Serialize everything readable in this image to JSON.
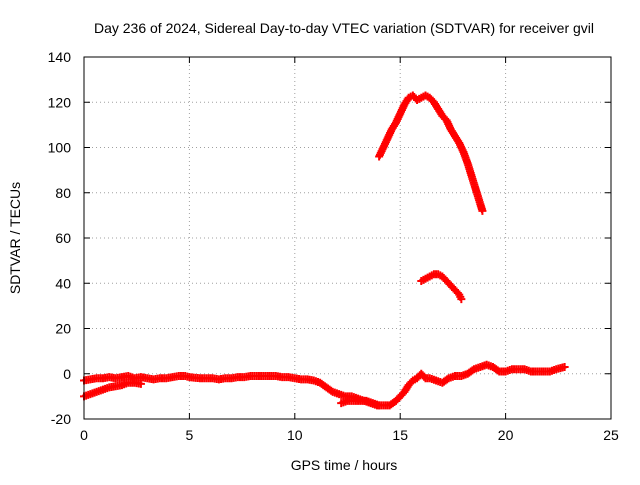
{
  "chart_data": {
    "type": "scatter",
    "title": "Day 236 of 2024, Sidereal Day-to-day VTEC variation (SDTVAR) for receiver gvil",
    "xlabel": "GPS time / hours",
    "ylabel": "SDTVAR / TECUs",
    "xlim": [
      0,
      25
    ],
    "ylim": [
      -20,
      140
    ],
    "x_ticks": [
      "0",
      "5",
      "10",
      "15",
      "20",
      "25"
    ],
    "y_ticks": [
      "-20",
      "0",
      "20",
      "40",
      "60",
      "80",
      "100",
      "120",
      "140"
    ],
    "grid": true,
    "marker": "plus",
    "series_color": "#ff0000",
    "series": [
      {
        "name": "near-zero baseline",
        "points": [
          [
            0.0,
            -3
          ],
          [
            0.3,
            -2.5
          ],
          [
            0.6,
            -2
          ],
          [
            0.9,
            -2
          ],
          [
            1.2,
            -1.5
          ],
          [
            1.5,
            -2
          ],
          [
            1.8,
            -1.5
          ],
          [
            2.1,
            -1
          ],
          [
            2.4,
            -2
          ],
          [
            2.7,
            -1.5
          ],
          [
            3.0,
            -2
          ],
          [
            3.3,
            -2.5
          ],
          [
            3.6,
            -2
          ],
          [
            3.9,
            -2
          ],
          [
            4.2,
            -1.5
          ],
          [
            4.5,
            -1
          ],
          [
            4.8,
            -1
          ],
          [
            5.0,
            -1.5
          ],
          [
            5.5,
            -2
          ],
          [
            5.8,
            -2
          ],
          [
            6.1,
            -2
          ],
          [
            6.4,
            -2.5
          ],
          [
            6.7,
            -2
          ],
          [
            7.0,
            -2
          ],
          [
            7.3,
            -1.5
          ],
          [
            7.6,
            -1.5
          ],
          [
            7.9,
            -1
          ],
          [
            8.2,
            -1
          ],
          [
            8.5,
            -1
          ],
          [
            8.8,
            -1
          ],
          [
            9.1,
            -1
          ],
          [
            9.4,
            -1.5
          ],
          [
            9.7,
            -1.5
          ],
          [
            10.0,
            -2
          ],
          [
            10.3,
            -2.5
          ],
          [
            10.6,
            -2.5
          ],
          [
            10.9,
            -3
          ],
          [
            11.2,
            -4
          ],
          [
            11.5,
            -6
          ],
          [
            11.8,
            -8
          ],
          [
            12.1,
            -9
          ],
          [
            12.4,
            -10
          ],
          [
            12.7,
            -10
          ],
          [
            13.0,
            -11
          ],
          [
            13.3,
            -12
          ],
          [
            13.6,
            -13
          ],
          [
            13.9,
            -14
          ],
          [
            14.2,
            -14
          ],
          [
            14.5,
            -14
          ],
          [
            14.8,
            -12
          ],
          [
            15.0,
            -10
          ],
          [
            15.2,
            -8
          ],
          [
            15.4,
            -5
          ],
          [
            15.6,
            -3
          ],
          [
            15.8,
            -2
          ],
          [
            16.0,
            0
          ],
          [
            16.2,
            -2
          ],
          [
            16.4,
            -2
          ],
          [
            16.7,
            -3
          ],
          [
            17.0,
            -4
          ],
          [
            17.3,
            -2
          ],
          [
            17.6,
            -1
          ],
          [
            17.9,
            -1
          ],
          [
            18.2,
            0
          ],
          [
            18.5,
            2
          ],
          [
            18.8,
            3
          ],
          [
            19.1,
            4
          ],
          [
            19.4,
            3
          ],
          [
            19.7,
            1
          ],
          [
            20.0,
            1
          ],
          [
            20.3,
            2
          ],
          [
            20.6,
            2
          ],
          [
            20.9,
            2
          ],
          [
            21.2,
            1
          ],
          [
            21.5,
            1
          ],
          [
            21.8,
            1
          ],
          [
            22.1,
            1
          ],
          [
            22.4,
            2
          ],
          [
            22.8,
            3
          ]
        ]
      },
      {
        "name": "lower ramp",
        "points": [
          [
            0.0,
            -10
          ],
          [
            0.3,
            -9
          ],
          [
            0.6,
            -8
          ],
          [
            0.9,
            -7
          ],
          [
            1.2,
            -6
          ],
          [
            1.5,
            -5.5
          ],
          [
            1.8,
            -5
          ],
          [
            2.1,
            -4
          ],
          [
            2.4,
            -4
          ],
          [
            2.7,
            -4.5
          ]
        ]
      },
      {
        "name": "dip segment",
        "points": [
          [
            12.2,
            -13
          ],
          [
            12.5,
            -12
          ],
          [
            12.8,
            -12
          ],
          [
            13.1,
            -12
          ],
          [
            13.4,
            -12
          ],
          [
            13.7,
            -13
          ],
          [
            14.0,
            -14
          ]
        ]
      },
      {
        "name": "upper arc",
        "points": [
          [
            14.0,
            96
          ],
          [
            14.2,
            100
          ],
          [
            14.4,
            104
          ],
          [
            14.6,
            108
          ],
          [
            14.8,
            111
          ],
          [
            15.0,
            115
          ],
          [
            15.2,
            119
          ],
          [
            15.4,
            122
          ],
          [
            15.6,
            123
          ],
          [
            15.8,
            121
          ],
          [
            16.0,
            122
          ],
          [
            16.2,
            123
          ],
          [
            16.4,
            122
          ],
          [
            16.6,
            120
          ],
          [
            16.8,
            117
          ],
          [
            17.0,
            114
          ],
          [
            17.2,
            112
          ],
          [
            17.4,
            108
          ],
          [
            17.6,
            105
          ],
          [
            17.8,
            102
          ],
          [
            18.0,
            98
          ],
          [
            18.2,
            93
          ],
          [
            18.4,
            87
          ],
          [
            18.6,
            81
          ],
          [
            18.8,
            75
          ],
          [
            18.9,
            72
          ]
        ]
      },
      {
        "name": "middle hump",
        "points": [
          [
            16.0,
            41
          ],
          [
            16.2,
            42
          ],
          [
            16.4,
            43
          ],
          [
            16.6,
            44
          ],
          [
            16.8,
            44
          ],
          [
            17.0,
            43
          ],
          [
            17.2,
            41
          ],
          [
            17.4,
            39
          ],
          [
            17.6,
            37
          ],
          [
            17.8,
            35
          ],
          [
            17.9,
            33
          ]
        ]
      }
    ]
  }
}
